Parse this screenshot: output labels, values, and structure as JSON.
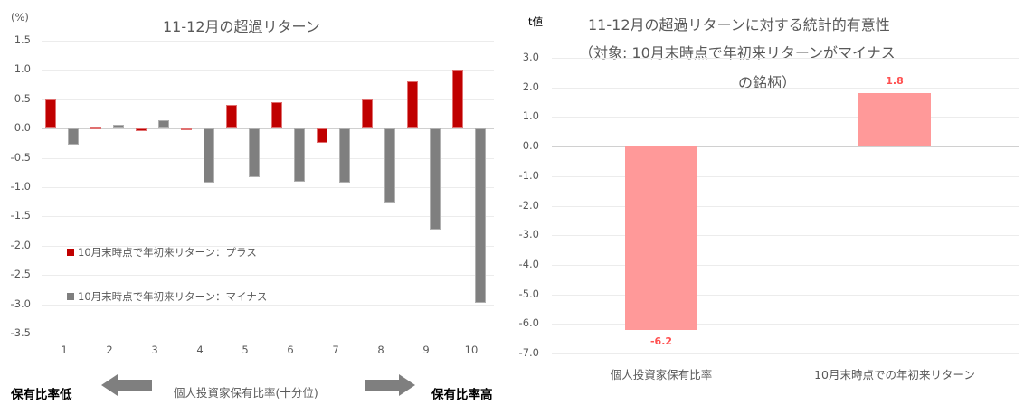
{
  "chart_data": [
    {
      "type": "bar",
      "title": "11-12月の超過リターン",
      "ylabel": "(%)",
      "xlabel": "個人投資家保有比率(十分位)",
      "ylim": [
        -3.5,
        1.5
      ],
      "yticks": [
        "1.5",
        "1.0",
        "0.5",
        "0.0",
        "-0.5",
        "-1.0",
        "-1.5",
        "-2.0",
        "-2.5",
        "-3.0",
        "-3.5"
      ],
      "categories": [
        "1",
        "2",
        "3",
        "4",
        "5",
        "6",
        "7",
        "8",
        "9",
        "10"
      ],
      "grid": true,
      "legend_position": "inside-lower-left",
      "series": [
        {
          "name": "10月末時点で年初来リターン：プラス",
          "color": "#c00000",
          "values": [
            0.5,
            0.02,
            -0.05,
            0.0,
            0.41,
            0.45,
            -0.24,
            0.5,
            0.8,
            1.0
          ]
        },
        {
          "name": "10月末時点で年初来リターン：マイナス",
          "color": "#7f7f7f",
          "values": [
            -0.27,
            0.07,
            0.14,
            -0.93,
            -0.83,
            -0.9,
            -0.92,
            -1.26,
            -1.72,
            -2.97
          ]
        }
      ],
      "annotations": {
        "left": "保有比率低",
        "right": "保有比率高"
      }
    },
    {
      "type": "bar",
      "title": "11-12月の超過リターンに対する統計的有意性（対象: 10月末時点で年初来リターンがマイナスの銘柄）",
      "ylabel": "t値",
      "ylim": [
        -7.0,
        3.0
      ],
      "yticks": [
        "3.0",
        "2.0",
        "1.0",
        "0.0",
        "-1.0",
        "-2.0",
        "-3.0",
        "-4.0",
        "-5.0",
        "-6.0",
        "-7.0"
      ],
      "categories": [
        "個人投資家保有比率",
        "10月末時点での年初来リターン"
      ],
      "values": [
        -6.2,
        1.8
      ],
      "data_labels": [
        "-6.2",
        "1.8"
      ],
      "color": "#ff9999",
      "grid": true
    }
  ],
  "left": {
    "unit": "(%)",
    "title": "11-12月の超過リターン",
    "legend": [
      "10月末時点で年初来リターン：プラス",
      "10月末時点で年初来リターン：マイナス"
    ],
    "xlabel": "個人投資家保有比率(十分位)",
    "low_label": "保有比率低",
    "high_label": "保有比率高"
  },
  "right": {
    "unit": "t値",
    "title_line1": "11-12月の超過リターンに対する統計的有意性",
    "title_line2": "（対象: 10月末時点で年初来リターンがマイナス",
    "title_line3": "の銘柄）"
  },
  "colors": {
    "plus": "#c00000",
    "minus": "#7f7f7f",
    "tbar": "#ff9999",
    "tlabel": "#ff5050",
    "arrow": "#7f7f7f"
  }
}
